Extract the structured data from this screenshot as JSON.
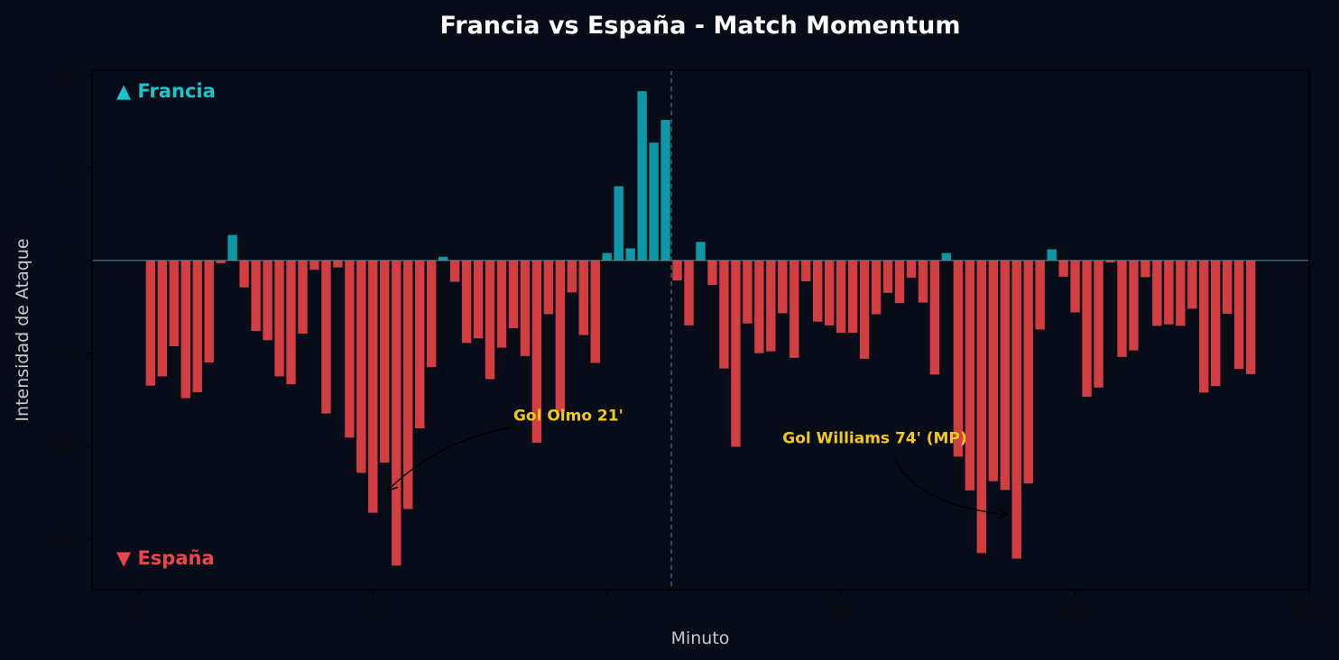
{
  "chart_data": {
    "type": "bar",
    "title": "Francia vs España - Match Momentum",
    "xlabel": "Minuto",
    "ylabel": "Intensidad de Ataque",
    "xlim": [
      -4,
      100
    ],
    "ylim": [
      -71,
      41
    ],
    "xticks": [
      0,
      20,
      40,
      60,
      80,
      100
    ],
    "yticks": [
      -60,
      -40,
      -20,
      0,
      20,
      40
    ],
    "halftime_line_x": 45.5,
    "grid": false,
    "legend_top": "▲ Francia",
    "legend_bottom": "▼ España",
    "colors": {
      "background": "#070d18",
      "positive": "#0e98a6",
      "negative": "#d33e43",
      "legend_positive": "#19c6d0",
      "legend_negative": "#f0444b",
      "annotation": "#f4c817"
    },
    "x": [
      1,
      2,
      3,
      4,
      5,
      6,
      7,
      8,
      9,
      10,
      11,
      12,
      13,
      14,
      15,
      16,
      17,
      18,
      19,
      20,
      21,
      22,
      23,
      24,
      25,
      26,
      27,
      28,
      29,
      30,
      31,
      32,
      33,
      34,
      35,
      36,
      37,
      38,
      39,
      40,
      41,
      42,
      43,
      44,
      45,
      46,
      47,
      48,
      49,
      50,
      51,
      52,
      53,
      54,
      55,
      56,
      57,
      58,
      59,
      60,
      61,
      62,
      63,
      64,
      65,
      66,
      67,
      68,
      69,
      70,
      71,
      72,
      73,
      74,
      75,
      76,
      77,
      78,
      79,
      80,
      81,
      82,
      83,
      84,
      85,
      86,
      87,
      88,
      89,
      90,
      91,
      92,
      93,
      94,
      95
    ],
    "values": [
      -27,
      -25,
      -18.5,
      -29.7,
      -28.4,
      -22,
      -0.6,
      5.5,
      -5.8,
      -15.2,
      -17.2,
      -25,
      -26.7,
      -15.8,
      -2,
      -33,
      -1.5,
      -38.2,
      -45.8,
      -54.4,
      -43.6,
      -65.8,
      -53.6,
      -36.2,
      -23,
      0.8,
      -4.6,
      -17.8,
      -16.8,
      -25.6,
      -18.8,
      -14.6,
      -20.6,
      -39.3,
      -11.6,
      -32.6,
      -6.9,
      -16.1,
      -22.1,
      1.6,
      16,
      2.6,
      36.5,
      25.4,
      30.3,
      -4.3,
      -14,
      4,
      -5.3,
      -23.3,
      -40.2,
      -13.6,
      -20,
      -19.6,
      -11.4,
      -21,
      -4.5,
      -13.2,
      -14,
      -15.6,
      -15.6,
      -21.2,
      -11.6,
      -7,
      -9.2,
      -3.7,
      -9.1,
      -24.6,
      1.6,
      -42.3,
      -49.6,
      -63.1,
      -47.6,
      -49.5,
      -64.3,
      -48.1,
      -14.9,
      2.4,
      -3.5,
      -11.2,
      -29.4,
      -27.4,
      -0.4,
      -20.8,
      -19.4,
      -3.6,
      -14.1,
      -13.8,
      -14.1,
      -10.4,
      -28.5,
      -27.1,
      -11.5,
      -23.4,
      -24.5
    ],
    "annotations": [
      {
        "text": "Gol Olmo 21'",
        "text_x": 32,
        "text_y": -34.5,
        "point_x": 21.3,
        "point_y": -49.5
      },
      {
        "text": "Gol Williams 74' (MP)",
        "text_x": 55,
        "text_y": -39.4,
        "point_x": 74.2,
        "point_y": -54.8
      }
    ]
  }
}
